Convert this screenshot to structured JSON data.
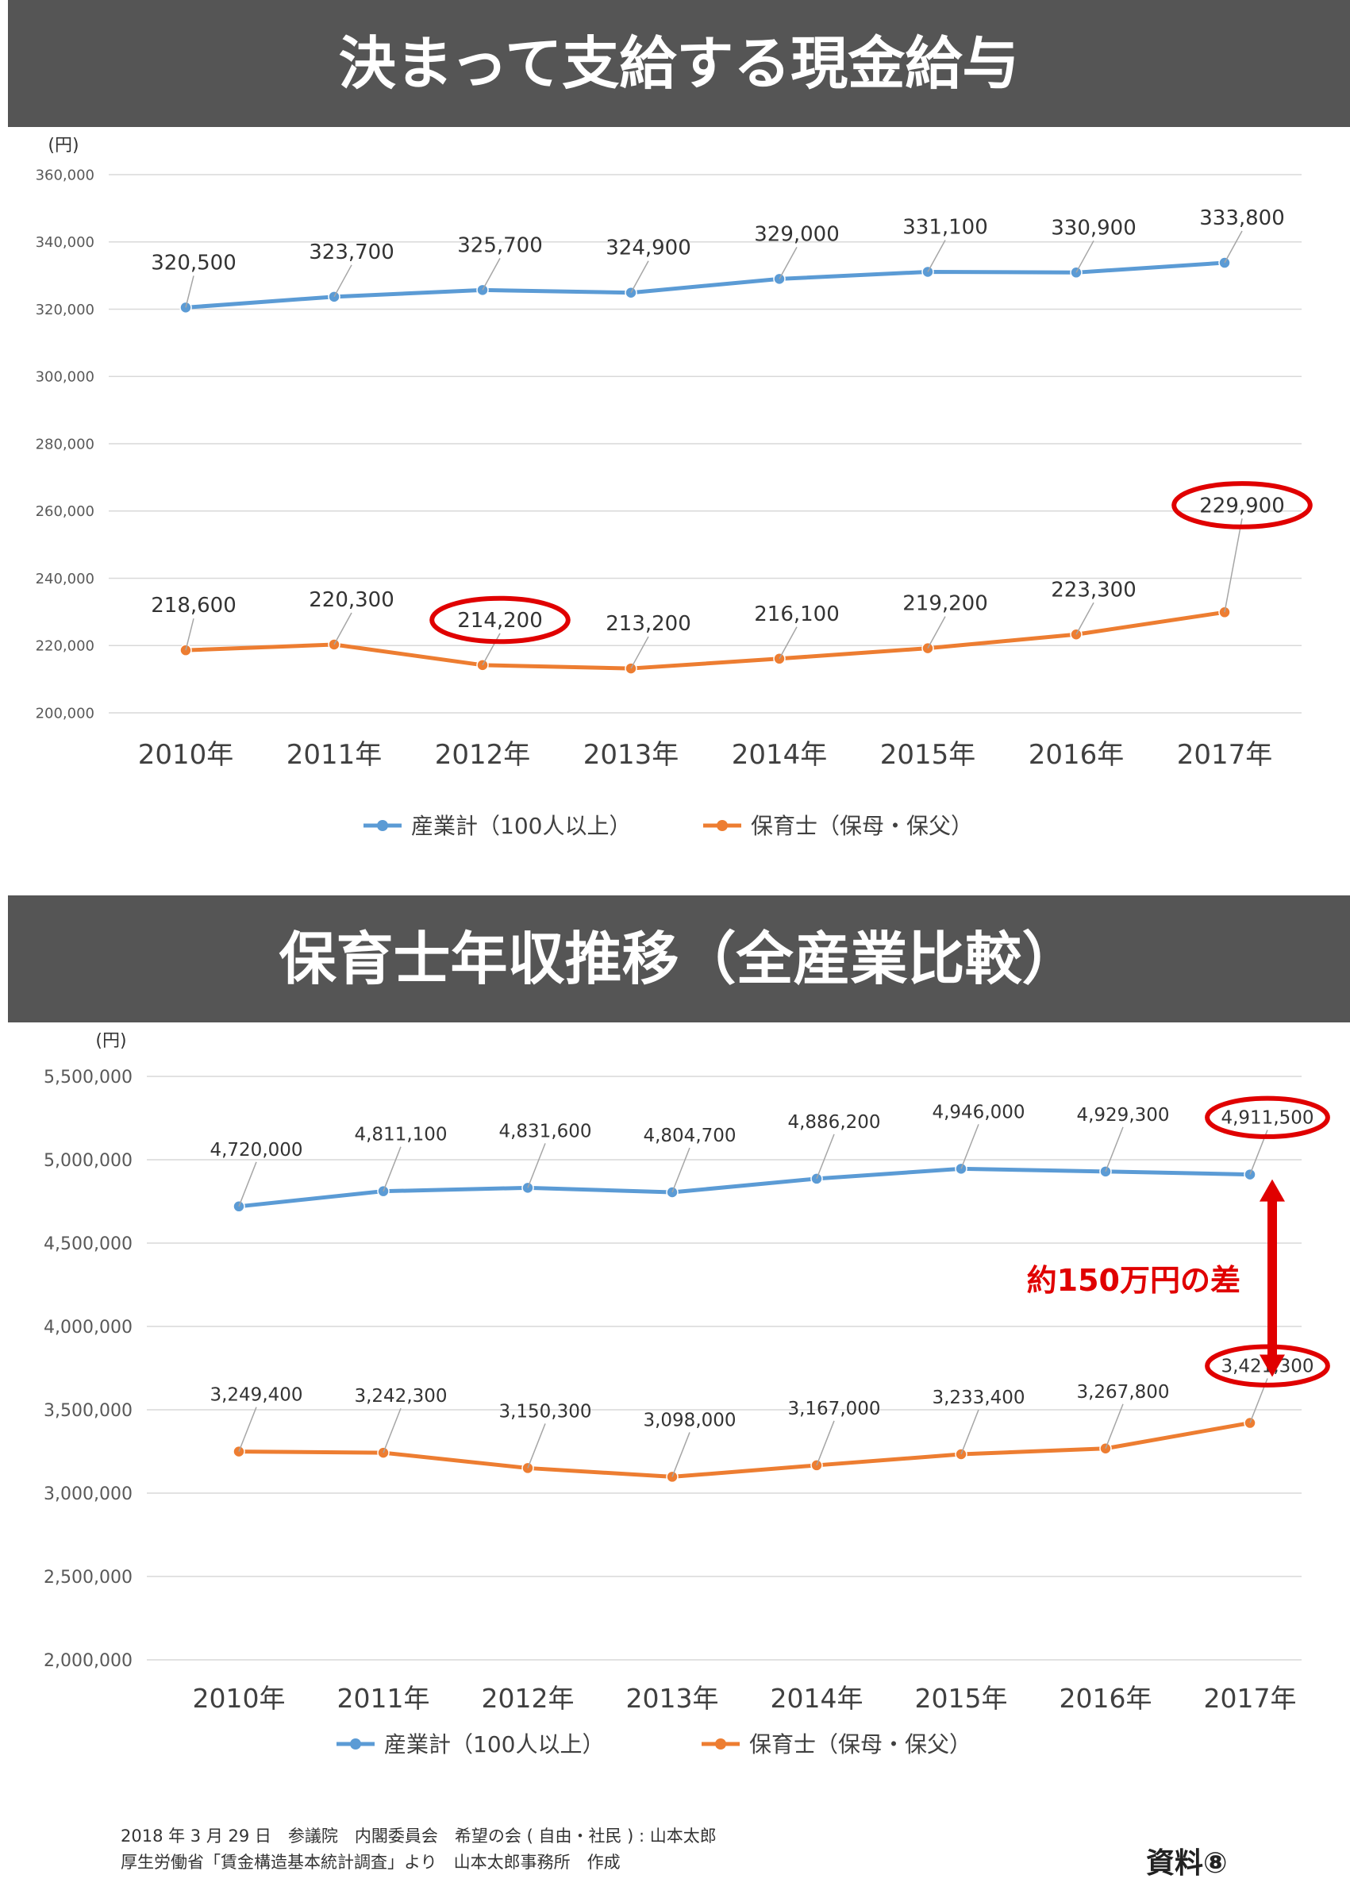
{
  "footer": {
    "line1": "2018 年 3 月 29 日　参議院　内閣委員会　希望の会 ( 自由・社民 ) : 山本太郎",
    "line2": "厚生労働省「賃金構造基本統計調査」より　山本太郎事務所　作成",
    "doc_label": "資料⑧"
  },
  "chart_data": [
    {
      "type": "line",
      "title": "決まって支給する現金給与",
      "ylabel": "(円)",
      "xlabel": "",
      "categories": [
        "2010年",
        "2011年",
        "2012年",
        "2013年",
        "2014年",
        "2015年",
        "2016年",
        "2017年"
      ],
      "ylim": [
        200000,
        360000
      ],
      "yticks": [
        200000,
        220000,
        240000,
        260000,
        280000,
        300000,
        320000,
        340000,
        360000
      ],
      "grid": true,
      "legend_position": "bottom",
      "series": [
        {
          "name": "産業計（100人以上）",
          "color": "#5B9BD5",
          "values": [
            320500,
            323700,
            325700,
            324900,
            329000,
            331100,
            330900,
            333800
          ]
        },
        {
          "name": "保育士（保母・保父）",
          "color": "#ED7D31",
          "values": [
            218600,
            220300,
            214200,
            213200,
            216100,
            219200,
            223300,
            229900
          ]
        }
      ],
      "highlighted": [
        {
          "series": 1,
          "index": 2,
          "color": "#E00000"
        },
        {
          "series": 1,
          "index": 7,
          "color": "#E00000"
        }
      ]
    },
    {
      "type": "line",
      "title": "保育士年収推移（全産業比較）",
      "ylabel": "(円)",
      "xlabel": "",
      "categories": [
        "2010年",
        "2011年",
        "2012年",
        "2013年",
        "2014年",
        "2015年",
        "2016年",
        "2017年"
      ],
      "ylim": [
        2000000,
        5500000
      ],
      "yticks": [
        2000000,
        2500000,
        3000000,
        3500000,
        4000000,
        4500000,
        5000000,
        5500000
      ],
      "grid": true,
      "legend_position": "bottom",
      "series": [
        {
          "name": "産業計（100人以上）",
          "color": "#5B9BD5",
          "values": [
            4720000,
            4811100,
            4831600,
            4804700,
            4886200,
            4946000,
            4929300,
            4911500
          ]
        },
        {
          "name": "保育士（保母・保父）",
          "color": "#ED7D31",
          "values": [
            3249400,
            3242300,
            3150300,
            3098000,
            3167000,
            3233400,
            3267800,
            3421300
          ]
        }
      ],
      "highlighted": [
        {
          "series": 0,
          "index": 7,
          "color": "#E00000"
        },
        {
          "series": 1,
          "index": 7,
          "color": "#E00000"
        }
      ],
      "annotation": {
        "text": "約150万円の差",
        "color": "#E00000",
        "from_series": 0,
        "to_series": 1,
        "index": 7
      }
    }
  ]
}
